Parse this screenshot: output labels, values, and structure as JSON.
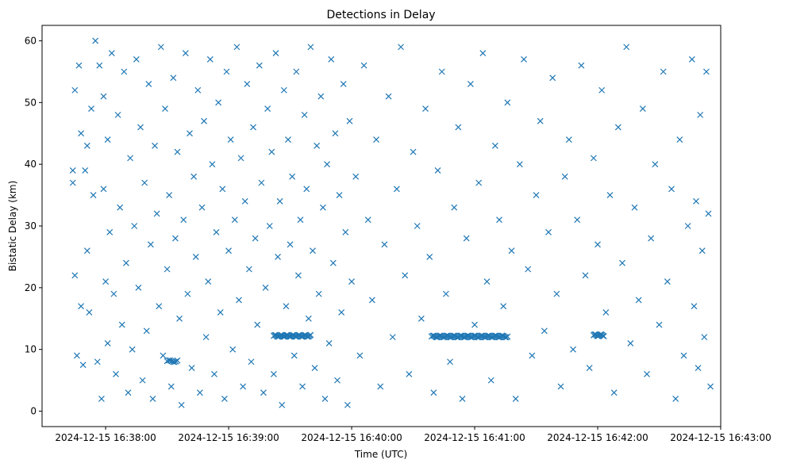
{
  "chart_data": {
    "type": "scatter",
    "title": "Detections in Delay",
    "xlabel": "Time (UTC)",
    "ylabel": "Bistatic Delay (km)",
    "x_units": "seconds after 2024-12-15 16:37:00",
    "xlim": [
      29,
      360
    ],
    "ylim": [
      -2.5,
      62.5
    ],
    "xticks": [
      60,
      120,
      180,
      240,
      300,
      360
    ],
    "xtick_labels": [
      "2024-12-15 16:38:00",
      "2024-12-15 16:39:00",
      "2024-12-15 16:40:00",
      "2024-12-15 16:41:00",
      "2024-12-15 16:42:00",
      "2024-12-15 16:43:00"
    ],
    "yticks": [
      0,
      10,
      20,
      30,
      40,
      50,
      60
    ],
    "ytick_labels": [
      "0",
      "10",
      "20",
      "30",
      "40",
      "50",
      "60"
    ],
    "grid": false,
    "marker": "x",
    "color": "#1f77b4",
    "tracks": [
      {
        "x_start": 142,
        "x_end": 160,
        "delay": 12.2,
        "count": 40
      },
      {
        "x_start": 219,
        "x_end": 256,
        "delay": 12.1,
        "count": 70
      },
      {
        "x_start": 298,
        "x_end": 303,
        "delay": 12.3,
        "count": 12
      },
      {
        "x_start": 90,
        "x_end": 95,
        "delay": 8.1,
        "count": 8
      }
    ],
    "points": [
      [
        44,
        39
      ],
      [
        44,
        37
      ],
      [
        45,
        52
      ],
      [
        45,
        22
      ],
      [
        46,
        9
      ],
      [
        47,
        56
      ],
      [
        48,
        45
      ],
      [
        48,
        17
      ],
      [
        49,
        7.5
      ],
      [
        50,
        39
      ],
      [
        51,
        43
      ],
      [
        51,
        26
      ],
      [
        52,
        16
      ],
      [
        53,
        49
      ],
      [
        54,
        35
      ],
      [
        55,
        60
      ],
      [
        56,
        8
      ],
      [
        57,
        56
      ],
      [
        58,
        2
      ],
      [
        59,
        51
      ],
      [
        59,
        36
      ],
      [
        60,
        21
      ],
      [
        61,
        11
      ],
      [
        61,
        44
      ],
      [
        62,
        29
      ],
      [
        63,
        58
      ],
      [
        64,
        19
      ],
      [
        65,
        6
      ],
      [
        66,
        48
      ],
      [
        67,
        33
      ],
      [
        68,
        14
      ],
      [
        69,
        55
      ],
      [
        70,
        24
      ],
      [
        71,
        3
      ],
      [
        72,
        41
      ],
      [
        73,
        10
      ],
      [
        74,
        30
      ],
      [
        75,
        57
      ],
      [
        76,
        20
      ],
      [
        77,
        46
      ],
      [
        78,
        5
      ],
      [
        79,
        37
      ],
      [
        80,
        13
      ],
      [
        81,
        53
      ],
      [
        82,
        27
      ],
      [
        83,
        2
      ],
      [
        84,
        43
      ],
      [
        85,
        32
      ],
      [
        86,
        17
      ],
      [
        87,
        59
      ],
      [
        88,
        9
      ],
      [
        89,
        49
      ],
      [
        90,
        23
      ],
      [
        91,
        35
      ],
      [
        92,
        4
      ],
      [
        93,
        54
      ],
      [
        94,
        28
      ],
      [
        95,
        42
      ],
      [
        96,
        15
      ],
      [
        97,
        1
      ],
      [
        98,
        31
      ],
      [
        99,
        58
      ],
      [
        100,
        19
      ],
      [
        101,
        45
      ],
      [
        102,
        7
      ],
      [
        103,
        38
      ],
      [
        104,
        25
      ],
      [
        105,
        52
      ],
      [
        106,
        3
      ],
      [
        107,
        33
      ],
      [
        108,
        47
      ],
      [
        109,
        12
      ],
      [
        110,
        21
      ],
      [
        111,
        57
      ],
      [
        112,
        40
      ],
      [
        113,
        6
      ],
      [
        114,
        29
      ],
      [
        115,
        50
      ],
      [
        116,
        16
      ],
      [
        117,
        36
      ],
      [
        118,
        2
      ],
      [
        119,
        55
      ],
      [
        120,
        26
      ],
      [
        121,
        44
      ],
      [
        122,
        10
      ],
      [
        123,
        31
      ],
      [
        124,
        59
      ],
      [
        125,
        18
      ],
      [
        126,
        41
      ],
      [
        127,
        4
      ],
      [
        128,
        34
      ],
      [
        129,
        53
      ],
      [
        130,
        23
      ],
      [
        131,
        8
      ],
      [
        132,
        46
      ],
      [
        133,
        28
      ],
      [
        134,
        14
      ],
      [
        135,
        56
      ],
      [
        136,
        37
      ],
      [
        137,
        3
      ],
      [
        138,
        20
      ],
      [
        139,
        49
      ],
      [
        140,
        30
      ],
      [
        141,
        42
      ],
      [
        142,
        6
      ],
      [
        143,
        58
      ],
      [
        144,
        25
      ],
      [
        145,
        34
      ],
      [
        146,
        1
      ],
      [
        147,
        52
      ],
      [
        148,
        17
      ],
      [
        149,
        44
      ],
      [
        150,
        27
      ],
      [
        151,
        38
      ],
      [
        152,
        9
      ],
      [
        153,
        55
      ],
      [
        154,
        22
      ],
      [
        155,
        31
      ],
      [
        156,
        4
      ],
      [
        157,
        48
      ],
      [
        158,
        36
      ],
      [
        159,
        15
      ],
      [
        160,
        59
      ],
      [
        161,
        26
      ],
      [
        162,
        7
      ],
      [
        163,
        43
      ],
      [
        164,
        19
      ],
      [
        165,
        51
      ],
      [
        166,
        33
      ],
      [
        167,
        2
      ],
      [
        168,
        40
      ],
      [
        169,
        11
      ],
      [
        170,
        57
      ],
      [
        171,
        24
      ],
      [
        172,
        45
      ],
      [
        173,
        5
      ],
      [
        174,
        35
      ],
      [
        175,
        16
      ],
      [
        176,
        53
      ],
      [
        177,
        29
      ],
      [
        178,
        1
      ],
      [
        179,
        47
      ],
      [
        180,
        21
      ],
      [
        182,
        38
      ],
      [
        184,
        9
      ],
      [
        186,
        56
      ],
      [
        188,
        31
      ],
      [
        190,
        18
      ],
      [
        192,
        44
      ],
      [
        194,
        4
      ],
      [
        196,
        27
      ],
      [
        198,
        51
      ],
      [
        200,
        12
      ],
      [
        202,
        36
      ],
      [
        204,
        59
      ],
      [
        206,
        22
      ],
      [
        208,
        6
      ],
      [
        210,
        42
      ],
      [
        212,
        30
      ],
      [
        214,
        15
      ],
      [
        216,
        49
      ],
      [
        218,
        25
      ],
      [
        220,
        3
      ],
      [
        222,
        39
      ],
      [
        224,
        55
      ],
      [
        226,
        19
      ],
      [
        228,
        8
      ],
      [
        230,
        33
      ],
      [
        232,
        46
      ],
      [
        234,
        2
      ],
      [
        236,
        28
      ],
      [
        238,
        53
      ],
      [
        240,
        14
      ],
      [
        242,
        37
      ],
      [
        244,
        58
      ],
      [
        246,
        21
      ],
      [
        248,
        5
      ],
      [
        250,
        43
      ],
      [
        252,
        31
      ],
      [
        254,
        17
      ],
      [
        256,
        50
      ],
      [
        258,
        26
      ],
      [
        260,
        2
      ],
      [
        262,
        40
      ],
      [
        264,
        57
      ],
      [
        266,
        23
      ],
      [
        268,
        9
      ],
      [
        270,
        35
      ],
      [
        272,
        47
      ],
      [
        274,
        13
      ],
      [
        276,
        29
      ],
      [
        278,
        54
      ],
      [
        280,
        19
      ],
      [
        282,
        4
      ],
      [
        284,
        38
      ],
      [
        286,
        44
      ],
      [
        288,
        10
      ],
      [
        290,
        31
      ],
      [
        292,
        56
      ],
      [
        294,
        22
      ],
      [
        296,
        7
      ],
      [
        298,
        41
      ],
      [
        300,
        27
      ],
      [
        302,
        52
      ],
      [
        304,
        16
      ],
      [
        306,
        35
      ],
      [
        308,
        3
      ],
      [
        310,
        46
      ],
      [
        312,
        24
      ],
      [
        314,
        59
      ],
      [
        316,
        11
      ],
      [
        318,
        33
      ],
      [
        320,
        18
      ],
      [
        322,
        49
      ],
      [
        324,
        6
      ],
      [
        326,
        28
      ],
      [
        328,
        40
      ],
      [
        330,
        14
      ],
      [
        332,
        55
      ],
      [
        334,
        21
      ],
      [
        336,
        36
      ],
      [
        338,
        2
      ],
      [
        340,
        44
      ],
      [
        342,
        9
      ],
      [
        344,
        30
      ],
      [
        346,
        57
      ],
      [
        347,
        17
      ],
      [
        348,
        34
      ],
      [
        349,
        7
      ],
      [
        350,
        48
      ],
      [
        351,
        26
      ],
      [
        352,
        12
      ],
      [
        353,
        55
      ],
      [
        354,
        32
      ],
      [
        355,
        4
      ]
    ]
  }
}
